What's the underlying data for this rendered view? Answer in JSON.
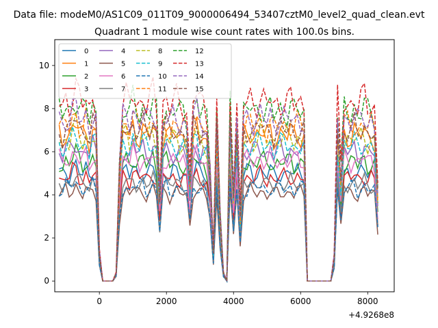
{
  "figure": {
    "suptitle": "Data file: modeM0/AS1C09_011T09_9000006494_53407cztM0_level2_quad_clean.evt",
    "title": "Quadrant 1 module wise count rates with 100.0s bins.",
    "x_offset_label": "+4.9268e8"
  },
  "chart_data": {
    "type": "line",
    "title": "Quadrant 1 module wise count rates with 100.0s bins.",
    "xlabel": "",
    "ylabel": "",
    "x_offset": 492680000,
    "xlim": [
      -1330,
      8790
    ],
    "ylim": [
      -0.5,
      11.2
    ],
    "xticks": [
      0,
      2000,
      4000,
      6000,
      8000
    ],
    "xtick_labels": [
      "0",
      "2000",
      "4000",
      "6000",
      "8000"
    ],
    "yticks": [
      0,
      2,
      4,
      6,
      8,
      10
    ],
    "ytick_labels": [
      "0",
      "2",
      "4",
      "6",
      "8",
      "10"
    ],
    "grid": false,
    "legend": {
      "position": "top-left",
      "columns": 4
    },
    "x": [
      -1200,
      -1100,
      -1000,
      -900,
      -800,
      -700,
      -600,
      -500,
      -400,
      -300,
      -200,
      -100,
      0,
      100,
      200,
      300,
      400,
      500,
      600,
      700,
      800,
      900,
      1000,
      1100,
      1200,
      1300,
      1400,
      1500,
      1600,
      1700,
      1800,
      1900,
      2000,
      2100,
      2200,
      2300,
      2400,
      2500,
      2600,
      2700,
      2800,
      2900,
      3000,
      3100,
      3200,
      3300,
      3400,
      3500,
      3600,
      3700,
      3800,
      3900,
      4000,
      4100,
      4200,
      4300,
      4400,
      4500,
      4600,
      4700,
      4800,
      4900,
      5000,
      5100,
      5200,
      5300,
      5400,
      5500,
      5600,
      5700,
      5800,
      5900,
      6000,
      6100,
      6200,
      6300,
      6400,
      6500,
      6600,
      6700,
      6800,
      6900,
      7000,
      7100,
      7200,
      7300,
      7400,
      7500,
      7600,
      7700,
      7800,
      7900,
      8000,
      8100,
      8200,
      8300
    ],
    "series": [
      {
        "name": "0",
        "color": "#1f77b4",
        "dash": false,
        "level": 5.0
      },
      {
        "name": "1",
        "color": "#ff7f0e",
        "dash": false,
        "level": 6.8
      },
      {
        "name": "2",
        "color": "#2ca02c",
        "dash": false,
        "level": 5.5
      },
      {
        "name": "3",
        "color": "#d62728",
        "dash": false,
        "level": 4.8
      },
      {
        "name": "4",
        "color": "#9467bd",
        "dash": false,
        "level": 6.0
      },
      {
        "name": "5",
        "color": "#8c564b",
        "dash": false,
        "level": 4.1
      },
      {
        "name": "6",
        "color": "#e377c2",
        "dash": false,
        "level": 5.6
      },
      {
        "name": "7",
        "color": "#7f7f7f",
        "dash": false,
        "level": 4.5
      },
      {
        "name": "8",
        "color": "#bcbd22",
        "dash": true,
        "level": 6.6
      },
      {
        "name": "9",
        "color": "#17becf",
        "dash": true,
        "level": 6.3
      },
      {
        "name": "10",
        "color": "#1f77b4",
        "dash": true,
        "level": 4.3
      },
      {
        "name": "11",
        "color": "#ff7f0e",
        "dash": true,
        "level": 7.2
      },
      {
        "name": "12",
        "color": "#2ca02c",
        "dash": true,
        "level": 7.9
      },
      {
        "name": "13",
        "color": "#d62728",
        "dash": true,
        "level": 8.3
      },
      {
        "name": "14",
        "color": "#9467bd",
        "dash": true,
        "level": 7.5
      },
      {
        "name": "15",
        "color": "#8c564b",
        "dash": true,
        "level": 7.0
      }
    ],
    "profile": [
      1.0,
      0.97,
      1.02,
      0.99,
      1.05,
      1.08,
      1.01,
      0.98,
      1.03,
      0.96,
      1.04,
      0.99,
      0.18,
      0.0,
      0.0,
      0.0,
      0.0,
      0.05,
      0.7,
      1.0,
      1.02,
      0.97,
      1.06,
      1.01,
      0.99,
      1.03,
      0.98,
      1.0,
      1.05,
      0.98,
      0.55,
      1.0,
      1.02,
      0.97,
      1.0,
      1.01,
      0.98,
      0.99,
      0.96,
      0.62,
      1.02,
      1.05,
      0.98,
      0.99,
      0.95,
      0.7,
      0.18,
      1.0,
      0.4,
      0.05,
      0.0,
      1.05,
      0.55,
      0.98,
      0.4,
      0.98,
      1.0,
      1.02,
      0.99,
      1.01,
      1.03,
      1.0,
      0.98,
      1.02,
      0.97,
      1.0,
      1.01,
      1.0,
      0.99,
      1.02,
      0.98,
      1.01,
      1.0,
      0.99,
      0.0,
      0.0,
      0.0,
      0.0,
      0.0,
      0.0,
      0.0,
      0.0,
      0.15,
      1.0,
      0.65,
      1.01,
      1.0,
      0.99,
      1.02,
      0.97,
      1.0,
      1.03,
      0.98,
      1.0,
      0.97,
      0.55
    ]
  }
}
